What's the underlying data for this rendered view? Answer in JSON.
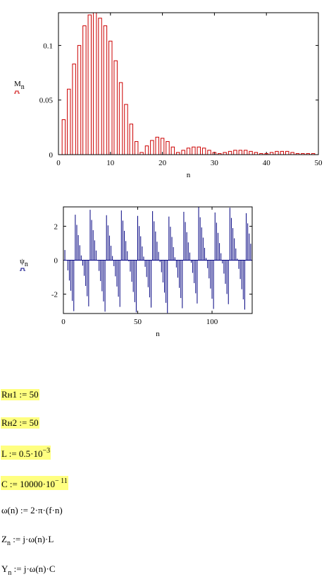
{
  "chart_data": [
    {
      "type": "bar",
      "color": "#cc0000",
      "x_label": "n",
      "y_label": "M",
      "y_label_sub": "n",
      "x": [
        1,
        2,
        3,
        4,
        5,
        6,
        7,
        8,
        9,
        10,
        11,
        12,
        13,
        14,
        15,
        16,
        17,
        18,
        19,
        20,
        21,
        22,
        23,
        24,
        25,
        26,
        27,
        28,
        29,
        30,
        31,
        32,
        33,
        34,
        35,
        36,
        37,
        38,
        39,
        40,
        41,
        42,
        43,
        44,
        45,
        46,
        47,
        48,
        49
      ],
      "values": [
        0.032,
        0.06,
        0.083,
        0.1,
        0.118,
        0.128,
        0.13,
        0.125,
        0.118,
        0.104,
        0.086,
        0.066,
        0.046,
        0.028,
        0.012,
        0.002,
        0.008,
        0.013,
        0.016,
        0.015,
        0.012,
        0.007,
        0.002,
        0.004,
        0.006,
        0.007,
        0.007,
        0.006,
        0.004,
        0.002,
        0.001,
        0.002,
        0.003,
        0.004,
        0.004,
        0.004,
        0.003,
        0.002,
        0.001,
        0.001,
        0.002,
        0.003,
        0.003,
        0.003,
        0.002,
        0.001,
        0.001,
        0.001,
        0.001
      ],
      "xlim": [
        0,
        50
      ],
      "xticks": [
        0,
        10,
        20,
        30,
        40,
        50
      ],
      "ylim": [
        0,
        0.13
      ],
      "yticks": [
        0,
        0.05,
        0.1
      ]
    },
    {
      "type": "stem",
      "color": "#000080",
      "x_label": "n",
      "y_label": "ψ",
      "y_label_sub": "n",
      "x": [
        0,
        1,
        2,
        3,
        4,
        5,
        6,
        7,
        8,
        9,
        10,
        11,
        12,
        13,
        14,
        15,
        16,
        17,
        18,
        19,
        20,
        21,
        22,
        23,
        24,
        25,
        26,
        27,
        28,
        29,
        30,
        31,
        32,
        33,
        34,
        35,
        36,
        37,
        38,
        39,
        40,
        41,
        42,
        43,
        44,
        45,
        46,
        47,
        48,
        49,
        50,
        51,
        52,
        53,
        54,
        55,
        56,
        57,
        58,
        59,
        60,
        61,
        62,
        63,
        64,
        65,
        66,
        67,
        68,
        69,
        70,
        71,
        72,
        73,
        74,
        75,
        76,
        77,
        78,
        79,
        80,
        81,
        82,
        83,
        84,
        85,
        86,
        87,
        88,
        89,
        90,
        91,
        92,
        93,
        94,
        95,
        96,
        97,
        98,
        99,
        100,
        101,
        102,
        103,
        104,
        105,
        106,
        107,
        108,
        109,
        110,
        111,
        112,
        113,
        114,
        115,
        116,
        117,
        118,
        119,
        120,
        121,
        122,
        123,
        124,
        125,
        126,
        127
      ],
      "values": [
        1.2,
        0.6,
        0.0,
        -0.6,
        -1.2,
        -1.8,
        -2.4,
        -3.0,
        2.68,
        2.08,
        1.48,
        0.88,
        0.28,
        -0.32,
        -0.92,
        -1.52,
        -2.12,
        -2.72,
        2.97,
        2.37,
        1.77,
        1.17,
        0.57,
        -0.03,
        -0.63,
        -1.23,
        -1.83,
        -2.43,
        -3.03,
        2.65,
        2.05,
        1.45,
        0.85,
        0.25,
        -0.35,
        -0.95,
        -1.55,
        -2.15,
        -2.75,
        2.93,
        2.33,
        1.73,
        1.13,
        0.53,
        -0.07,
        -0.67,
        -1.27,
        -1.87,
        -2.47,
        -3.07,
        2.61,
        2.01,
        1.41,
        0.81,
        0.21,
        -0.39,
        -0.99,
        -1.59,
        -2.19,
        -2.79,
        2.89,
        2.29,
        1.69,
        1.09,
        0.49,
        -0.11,
        -0.71,
        -1.31,
        -1.91,
        -2.51,
        -3.11,
        2.57,
        1.97,
        1.37,
        0.77,
        0.17,
        -0.43,
        -1.03,
        -1.63,
        -2.23,
        -2.83,
        2.85,
        2.25,
        1.65,
        1.05,
        0.45,
        -0.15,
        -0.75,
        -1.35,
        -1.95,
        -2.55,
        3.13,
        2.53,
        1.93,
        1.33,
        0.73,
        0.13,
        -0.47,
        -1.07,
        -1.67,
        -2.27,
        -2.87,
        2.81,
        2.21,
        1.61,
        1.01,
        0.41,
        -0.19,
        -0.79,
        -1.39,
        -1.99,
        -2.59,
        3.09,
        2.49,
        1.89,
        1.29,
        0.69,
        0.09,
        -0.51,
        -1.11,
        -1.71,
        -2.31,
        -2.91,
        2.77,
        2.17,
        1.57,
        0.97,
        0.37
      ],
      "xlim": [
        0,
        127
      ],
      "xticks": [
        0,
        50,
        100
      ],
      "ylim": [
        -3.14,
        3.14
      ],
      "yticks": [
        -2,
        0,
        2
      ]
    }
  ],
  "formulas": [
    {
      "highlight": true,
      "parts": [
        {
          "text": "Rн1 := 50"
        }
      ]
    },
    {
      "highlight": true,
      "parts": [
        {
          "text": "Rн2 := 50"
        }
      ]
    },
    {
      "highlight": true,
      "parts": [
        {
          "text": "L := 0.5·10"
        },
        {
          "text": "−3",
          "sup": true
        }
      ]
    },
    {
      "highlight": true,
      "parts": [
        {
          "text": "C := 10000·10"
        },
        {
          "text": "− 11",
          "sup": true
        }
      ]
    },
    {
      "highlight": false,
      "parts": [
        {
          "text": "ω(n) := 2·π·(f·n)"
        }
      ]
    },
    {
      "highlight": false,
      "parts": [
        {
          "text": "Z"
        },
        {
          "text": "n",
          "sub": true
        },
        {
          "text": " := j·ω(n)·L"
        }
      ]
    },
    {
      "highlight": false,
      "parts": [
        {
          "text": "Y"
        },
        {
          "text": "n",
          "sub": true
        },
        {
          "text": " := j·ω(n)·C"
        }
      ]
    }
  ]
}
